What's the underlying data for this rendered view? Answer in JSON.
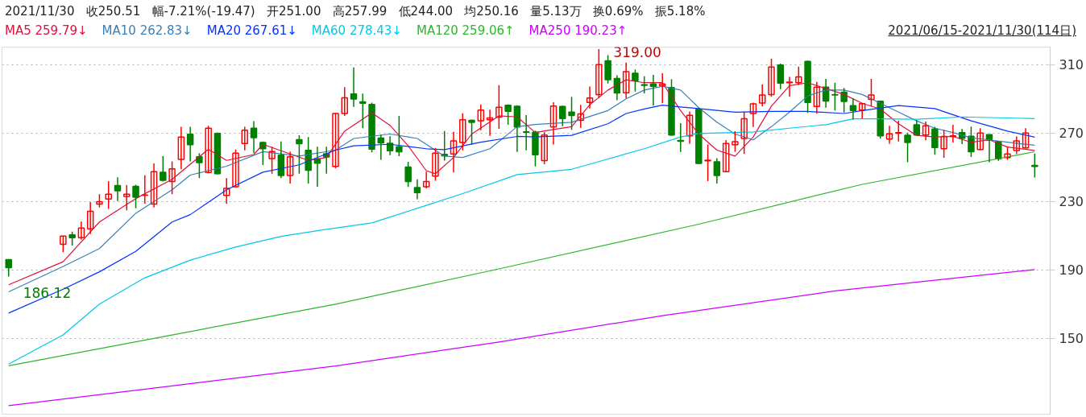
{
  "chart_data": {
    "type": "candlestick",
    "title": "2021/11/30   收250.51   幅-7.21%(-19.47)   开251.00   高257.99   低244.00   均250.16   量5.13万   换0.69%   振5.18%",
    "subtitle": "2021/06/15-2021/11/30(114日)",
    "categories": [
      null,
      null,
      null,
      null,
      null,
      null,
      null,
      null,
      null,
      null,
      null,
      null,
      null,
      null,
      null,
      null,
      null,
      null,
      null,
      null,
      null,
      null,
      null,
      null,
      null,
      null,
      null,
      null,
      null,
      null,
      null,
      null,
      null,
      null,
      null,
      null,
      null,
      null,
      null,
      null,
      null,
      null,
      null,
      null,
      null,
      null,
      null,
      null,
      null,
      null,
      null,
      null,
      null,
      null,
      null,
      null,
      null,
      null,
      null,
      null,
      null,
      null,
      null,
      null,
      null,
      null,
      null,
      null,
      null,
      null,
      null,
      null,
      null,
      null,
      null,
      null,
      null,
      null,
      null,
      null,
      null,
      null,
      null,
      null,
      null,
      null,
      null,
      null,
      null,
      null,
      null,
      null,
      null,
      null,
      null,
      null,
      null,
      null,
      null,
      null,
      null,
      null,
      null,
      null,
      null,
      null,
      null,
      null,
      null,
      null,
      null,
      null,
      null,
      null
    ],
    "ohlc": [
      [
        196.0,
        196.2,
        186.12,
        191.3
      ],
      null,
      null,
      null,
      null,
      null,
      [
        205.0,
        209.8,
        200.4,
        209.8
      ],
      [
        210.5,
        212.4,
        204.2,
        208.8
      ],
      [
        208.8,
        218.2,
        207.6,
        214.5
      ],
      [
        214.0,
        229.6,
        211.0,
        224.2
      ],
      [
        228.5,
        234.2,
        226.5,
        229.9
      ],
      [
        231.4,
        241.9,
        225.6,
        234.2
      ],
      [
        239.3,
        244.1,
        230.2,
        236.2
      ],
      [
        233.0,
        239.7,
        224.8,
        234.2
      ],
      [
        238.8,
        239.8,
        226.0,
        232.5
      ],
      [
        233.6,
        245.3,
        228.7,
        233.8
      ],
      [
        228.5,
        252.2,
        226.5,
        247.4
      ],
      [
        247.0,
        256.5,
        241.6,
        242.4
      ],
      [
        241.6,
        253.4,
        234.2,
        249.1
      ],
      [
        254.6,
        273.6,
        248.8,
        267.6
      ],
      [
        269.3,
        273.6,
        253.4,
        263.2
      ],
      [
        256.1,
        258.2,
        243.6,
        252.7
      ],
      [
        246.9,
        274.2,
        246.5,
        272.8
      ],
      [
        269.7,
        270.3,
        245.8,
        246.2
      ],
      [
        233.5,
        243.6,
        228.7,
        237.6
      ],
      [
        238.6,
        260.3,
        238.1,
        258.2
      ],
      [
        263.9,
        273.6,
        259.9,
        271.6
      ],
      [
        272.8,
        276.9,
        258.2,
        267.3
      ],
      [
        264.4,
        265.1,
        251.3,
        260.8
      ],
      [
        255.1,
        262.0,
        246.2,
        259.2
      ],
      [
        257.0,
        265.1,
        243.6,
        245.2
      ],
      [
        245.2,
        259.2,
        240.5,
        256.1
      ],
      [
        266.1,
        268.7,
        246.2,
        263.7
      ],
      [
        259.9,
        267.6,
        240.5,
        248.2
      ],
      [
        254.8,
        262.0,
        238.6,
        252.4
      ],
      [
        257.9,
        262.0,
        246.2,
        256.0
      ],
      [
        250.5,
        281.7,
        249.3,
        281.4
      ],
      [
        281.4,
        296.8,
        280.0,
        290.6
      ],
      [
        292.8,
        308.3,
        285.3,
        289.9
      ],
      [
        288.2,
        293.0,
        272.8,
        287.4
      ],
      [
        286.7,
        287.7,
        258.7,
        260.6
      ],
      [
        267.1,
        269.0,
        254.4,
        264.2
      ],
      [
        264.0,
        268.1,
        257.0,
        259.6
      ],
      [
        262.0,
        280.0,
        256.5,
        259.1
      ],
      [
        250.1,
        253.2,
        238.5,
        241.6
      ],
      [
        238.1,
        242.9,
        231.3,
        235.2
      ],
      [
        238.6,
        247.4,
        237.6,
        241.7
      ],
      [
        244.8,
        261.3,
        242.1,
        258.2
      ],
      [
        257.5,
        271.2,
        253.9,
        256.7
      ],
      [
        257.7,
        270.7,
        246.9,
        265.4
      ],
      [
        264.4,
        281.5,
        259.9,
        277.8
      ],
      [
        277.4,
        277.9,
        263.0,
        276.2
      ],
      [
        277.2,
        286.7,
        271.6,
        283.4
      ],
      [
        277.8,
        283.6,
        268.3,
        278.8
      ],
      [
        279.3,
        298.0,
        272.4,
        285.0
      ],
      [
        286.2,
        286.7,
        274.8,
        282.7
      ],
      [
        285.6,
        286.2,
        258.9,
        273.5
      ],
      [
        270.7,
        280.5,
        259.9,
        270.4
      ],
      [
        270.5,
        271.4,
        250.5,
        257.3
      ],
      [
        253.9,
        270.5,
        251.7,
        268.8
      ],
      [
        273.5,
        288.0,
        263.3,
        285.8
      ],
      [
        285.5,
        286.0,
        274.0,
        278.4
      ],
      [
        282.2,
        291.1,
        271.9,
        280.2
      ],
      [
        277.4,
        286.5,
        273.1,
        281.2
      ],
      [
        287.9,
        297.1,
        284.3,
        290.4
      ],
      [
        292.5,
        319.0,
        290.3,
        310.0
      ],
      [
        312.2,
        315.5,
        298.9,
        301.1
      ],
      [
        301.9,
        303.7,
        289.1,
        293.4
      ],
      [
        293.5,
        311.2,
        290.3,
        305.9
      ],
      [
        304.9,
        307.1,
        294.2,
        300.6
      ],
      [
        298.2,
        303.1,
        293.2,
        297.8
      ],
      [
        298.7,
        304.0,
        286.0,
        297.3
      ],
      [
        297.6,
        304.9,
        287.4,
        298.7
      ],
      [
        296.6,
        301.4,
        268.5,
        268.8
      ],
      [
        265.6,
        275.7,
        258.9,
        265.2
      ],
      [
        268.3,
        282.6,
        263.7,
        280.3
      ],
      [
        283.9,
        284.8,
        251.9,
        252.2
      ],
      [
        253.7,
        263.3,
        241.9,
        254.1
      ],
      [
        253.2,
        255.3,
        240.5,
        245.2
      ],
      [
        247.4,
        265.9,
        247.2,
        263.9
      ],
      [
        263.2,
        271.1,
        259.1,
        264.9
      ],
      [
        266.8,
        282.6,
        257.7,
        278.3
      ],
      [
        281.4,
        287.7,
        273.5,
        287.0
      ],
      [
        287.5,
        298.5,
        285.5,
        292.2
      ],
      [
        292.5,
        313.4,
        291.1,
        308.6
      ],
      [
        309.7,
        310.5,
        295.6,
        299.2
      ],
      [
        299.4,
        302.8,
        291.3,
        299.7
      ],
      [
        299.4,
        308.8,
        298.0,
        302.8
      ],
      [
        311.9,
        312.2,
        281.7,
        287.9
      ],
      [
        285.5,
        299.9,
        281.4,
        296.8
      ],
      [
        296.8,
        301.6,
        284.8,
        288.7
      ],
      [
        292.5,
        299.4,
        283.1,
        292.2
      ],
      [
        293.9,
        296.3,
        282.0,
        288.4
      ],
      [
        286.0,
        290.3,
        277.9,
        283.2
      ],
      [
        283.4,
        287.4,
        278.4,
        287.2
      ],
      [
        289.6,
        301.6,
        285.6,
        292.2
      ],
      [
        288.6,
        288.8,
        266.8,
        268.3
      ],
      [
        266.4,
        274.2,
        263.7,
        269.5
      ],
      [
        269.9,
        277.2,
        265.1,
        270.2
      ],
      [
        268.7,
        270.2,
        252.9,
        264.5
      ],
      [
        274.8,
        277.6,
        268.5,
        268.8
      ],
      [
        268.8,
        276.7,
        265.7,
        274.2
      ],
      [
        272.3,
        273.6,
        257.3,
        261.5
      ],
      [
        260.8,
        271.7,
        255.5,
        268.0
      ],
      [
        268.0,
        274.8,
        264.5,
        268.3
      ],
      [
        270.2,
        272.3,
        263.5,
        266.9
      ],
      [
        268.1,
        273.8,
        256.0,
        259.1
      ],
      [
        260.3,
        272.8,
        260.0,
        270.0
      ],
      [
        269.0,
        269.2,
        252.9,
        265.9
      ],
      [
        265.1,
        265.3,
        253.7,
        254.9
      ],
      [
        255.6,
        262.0,
        254.3,
        257.7
      ],
      [
        259.7,
        268.0,
        257.7,
        265.4
      ],
      [
        261.3,
        272.8,
        261.0,
        270.0
      ],
      [
        251.0,
        257.99,
        244.0,
        250.51
      ]
    ],
    "series": [
      {
        "name": "MA5 259.79↓",
        "type": "line",
        "color": "#e0103c",
        "values": [
          181.3,
          null,
          null,
          null,
          null,
          null,
          194.8,
          null,
          null,
          null,
          218,
          null,
          null,
          null,
          231.7,
          null,
          null,
          null,
          242.9,
          null,
          null,
          null,
          260.5,
          null,
          254,
          null,
          null,
          257.4,
          263.4,
          null,
          null,
          null,
          null,
          254,
          null,
          255.7,
          null,
          271.1,
          null,
          null,
          281.7,
          null,
          274.5,
          null,
          262.5,
          null,
          248,
          246.2,
          null,
          255.7,
          null,
          269.4,
          null,
          null,
          280,
          null,
          279.4,
          null,
          270.3,
          null,
          272,
          null,
          273.7,
          null,
          286.5,
          null,
          295.1,
          null,
          301.1,
          null,
          299.4,
          null,
          299.4,
          null,
          283.1,
          null,
          269.4,
          null,
          260,
          null,
          256.5,
          null,
          267.7,
          null,
          285.7,
          null,
          297.7,
          null,
          299.4,
          null,
          296,
          null,
          292.5,
          null,
          287.4,
          null,
          284,
          null,
          275.4,
          null,
          268.6,
          null,
          267.7,
          null,
          268,
          null,
          264.6,
          null,
          266,
          null,
          261.8,
          null,
          null,
          259.79
        ]
      },
      {
        "name": "MA10 262.83↓",
        "type": "line",
        "color": "#3a7fb8",
        "values": [
          177.2,
          null,
          null,
          null,
          null,
          null,
          192,
          null,
          null,
          null,
          202.5,
          null,
          null,
          null,
          223.1,
          null,
          null,
          null,
          236.8,
          null,
          245.4,
          null,
          null,
          null,
          250.6,
          null,
          null,
          null,
          259.1,
          null,
          null,
          null,
          256.5,
          null,
          null,
          null,
          260,
          null,
          266.8,
          null,
          null,
          null,
          269.4,
          null,
          null,
          266.8,
          null,
          null,
          256.5,
          null,
          255.7,
          null,
          null,
          260.8,
          null,
          null,
          273.7,
          null,
          275,
          null,
          null,
          null,
          276.3,
          null,
          279.7,
          null,
          283.1,
          null,
          290,
          null,
          295.1,
          null,
          297.3,
          null,
          295.1,
          null,
          284.8,
          null,
          276.3,
          null,
          269.4,
          null,
          266,
          null,
          273.7,
          null,
          282.2,
          null,
          291.7,
          null,
          295.1,
          null,
          295.1,
          null,
          292.5,
          null,
          287.4,
          null,
          282.2,
          null,
          277.1,
          null,
          272.8,
          null,
          270.3,
          null,
          267.2,
          null,
          266,
          null,
          264.6,
          null,
          null,
          262.83
        ]
      },
      {
        "name": "MA20 267.61↓",
        "type": "line",
        "color": "#0033ff",
        "values": [
          164.8,
          null,
          null,
          null,
          null,
          null,
          178.7,
          null,
          null,
          null,
          188.9,
          null,
          null,
          null,
          200.8,
          null,
          null,
          null,
          218,
          null,
          222.3,
          null,
          null,
          null,
          236.8,
          null,
          null,
          null,
          247.1,
          null,
          null,
          null,
          251.4,
          null,
          null,
          null,
          260,
          null,
          262.5,
          null,
          null,
          null,
          263.4,
          null,
          null,
          null,
          260.8,
          null,
          260.3,
          null,
          null,
          null,
          264.6,
          null,
          null,
          null,
          268,
          null,
          267.7,
          null,
          null,
          null,
          268.6,
          null,
          null,
          null,
          275.4,
          null,
          281.4,
          null,
          284,
          null,
          286.3,
          null,
          285.2,
          null,
          284.3,
          null,
          null,
          null,
          282.2,
          null,
          null,
          null,
          282.6,
          null,
          null,
          null,
          282.6,
          null,
          null,
          null,
          281.4,
          null,
          283.1,
          null,
          null,
          null,
          286,
          null,
          null,
          null,
          284.3,
          null,
          null,
          null,
          277.1,
          null,
          null,
          null,
          271.1,
          null,
          null,
          267.61
        ]
      },
      {
        "name": "MA60 278.43↓",
        "type": "line",
        "color": "#00c8e8",
        "values": [
          135,
          null,
          null,
          null,
          null,
          null,
          152,
          null,
          null,
          null,
          170,
          null,
          null,
          null,
          null,
          185.4,
          null,
          null,
          null,
          null,
          195.7,
          null,
          null,
          null,
          null,
          203.4,
          null,
          null,
          null,
          null,
          209.6,
          null,
          null,
          null,
          null,
          213.7,
          null,
          null,
          null,
          null,
          217.5,
          null,
          null,
          null,
          null,
          null,
          227.7,
          null,
          null,
          null,
          234.6,
          null,
          null,
          null,
          null,
          null,
          245.7,
          null,
          null,
          null,
          null,
          null,
          248.8,
          null,
          null,
          null,
          254.8,
          null,
          null,
          null,
          260.8,
          null,
          null,
          null,
          267.7,
          null,
          269.7,
          null,
          null,
          null,
          null,
          null,
          270.6,
          null,
          null,
          null,
          272.8,
          null,
          null,
          null,
          274.9,
          null,
          null,
          278.3,
          null,
          null,
          278.3,
          null,
          null,
          null,
          278,
          null,
          null,
          null,
          null,
          279.4,
          null,
          null,
          null,
          null,
          278.8,
          null,
          null,
          278.43
        ]
      },
      {
        "name": "MA120 259.06↑",
        "type": "line",
        "color": "#2db52d",
        "values": [
          134,
          null,
          null,
          null,
          null,
          null,
          null,
          null,
          null,
          null,
          null,
          null,
          null,
          null,
          null,
          null,
          null,
          null,
          152,
          null,
          null,
          null,
          null,
          null,
          null,
          null,
          null,
          null,
          null,
          null,
          null,
          null,
          null,
          null,
          null,
          null,
          170,
          null,
          null,
          null,
          null,
          null,
          null,
          null,
          null,
          null,
          null,
          null,
          null,
          null,
          null,
          null,
          null,
          null,
          190.6,
          null,
          null,
          null,
          null,
          null,
          null,
          null,
          null,
          null,
          null,
          null,
          null,
          null,
          null,
          null,
          null,
          null,
          null,
          null,
          null,
          null,
          216.7,
          null,
          null,
          null,
          null,
          null,
          null,
          null,
          null,
          null,
          null,
          null,
          null,
          null,
          null,
          null,
          null,
          null,
          240,
          null,
          null,
          null,
          null,
          null,
          null,
          null,
          null,
          null,
          null,
          null,
          null,
          null,
          null,
          null,
          null,
          null,
          null,
          259.06
        ]
      },
      {
        "name": "MA250 190.23↑",
        "type": "line",
        "color": "#cc00ff",
        "values": [
          110.7,
          null,
          null,
          null,
          null,
          null,
          null,
          null,
          null,
          null,
          null,
          null,
          null,
          null,
          null,
          null,
          null,
          null,
          122.2,
          null,
          null,
          null,
          null,
          null,
          null,
          null,
          null,
          null,
          null,
          null,
          null,
          null,
          null,
          null,
          null,
          null,
          133.9,
          null,
          null,
          null,
          null,
          null,
          null,
          null,
          null,
          null,
          null,
          null,
          null,
          null,
          null,
          null,
          null,
          null,
          147.9,
          null,
          null,
          null,
          null,
          null,
          null,
          null,
          null,
          null,
          null,
          null,
          null,
          null,
          null,
          null,
          null,
          null,
          163.3,
          null,
          null,
          null,
          null,
          null,
          null,
          null,
          null,
          null,
          null,
          null,
          null,
          null,
          null,
          null,
          null,
          null,
          null,
          177.7,
          null,
          null,
          null,
          null,
          null,
          null,
          null,
          null,
          null,
          null,
          null,
          null,
          null,
          null,
          null,
          null,
          null,
          null,
          null,
          null,
          null,
          190.23
        ]
      }
    ],
    "annotations": [
      "319.00",
      "186.12"
    ],
    "ylim": [
      105.7,
      320.2
    ],
    "yticks": [
      150,
      190,
      230,
      270,
      310
    ],
    "tick_labels": "y",
    "grid": "y"
  }
}
